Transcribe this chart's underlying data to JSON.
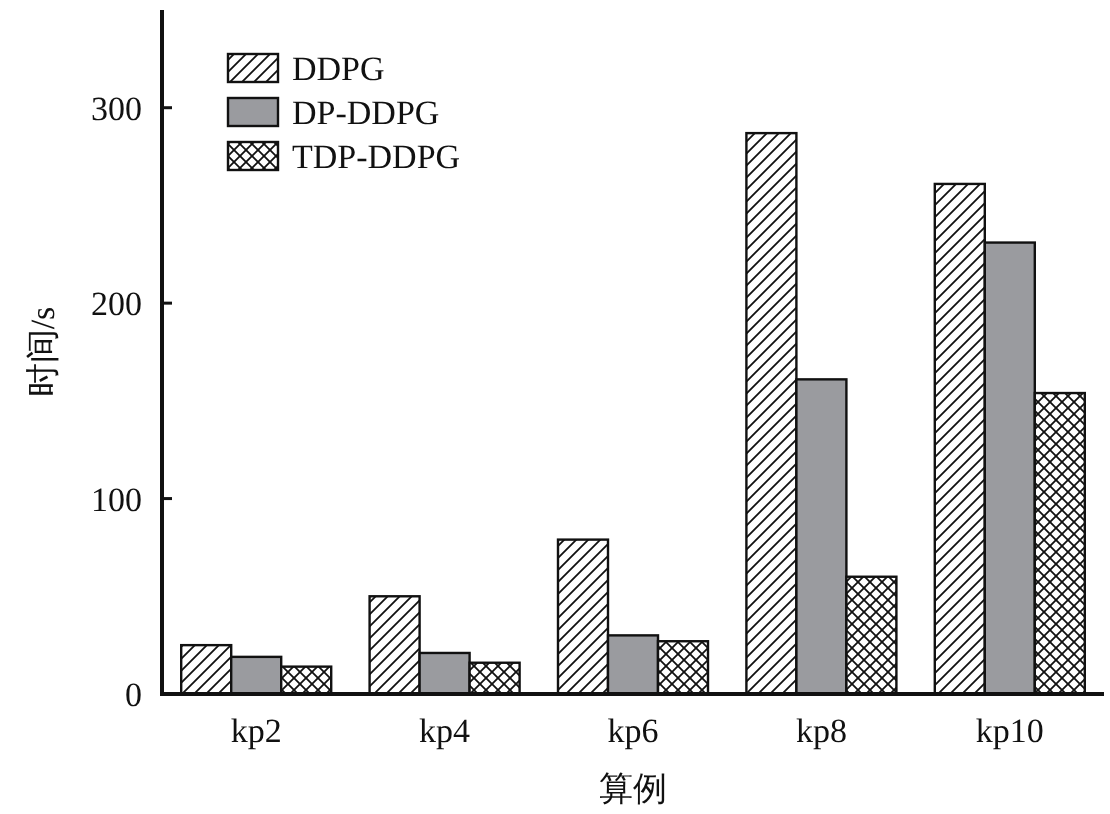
{
  "chart_data": {
    "type": "bar",
    "xlabel": "算例",
    "ylabel": "时间/s",
    "categories": [
      "kp2",
      "kp4",
      "kp6",
      "kp8",
      "kp10"
    ],
    "series": [
      {
        "name": "DDPG",
        "color": "#111111",
        "values": [
          25,
          50,
          79,
          287,
          261
        ]
      },
      {
        "name": "DP-DDPG",
        "color": "#9a9b9f",
        "values": [
          19,
          21,
          30,
          161,
          231
        ]
      },
      {
        "name": "TDP-DDPG",
        "color": "#111111",
        "values": [
          14,
          16,
          27,
          60,
          154
        ]
      }
    ],
    "ylim": [
      0,
      350
    ],
    "yticks": [
      0,
      100,
      200,
      300
    ],
    "grid": false,
    "legend": "top left"
  }
}
